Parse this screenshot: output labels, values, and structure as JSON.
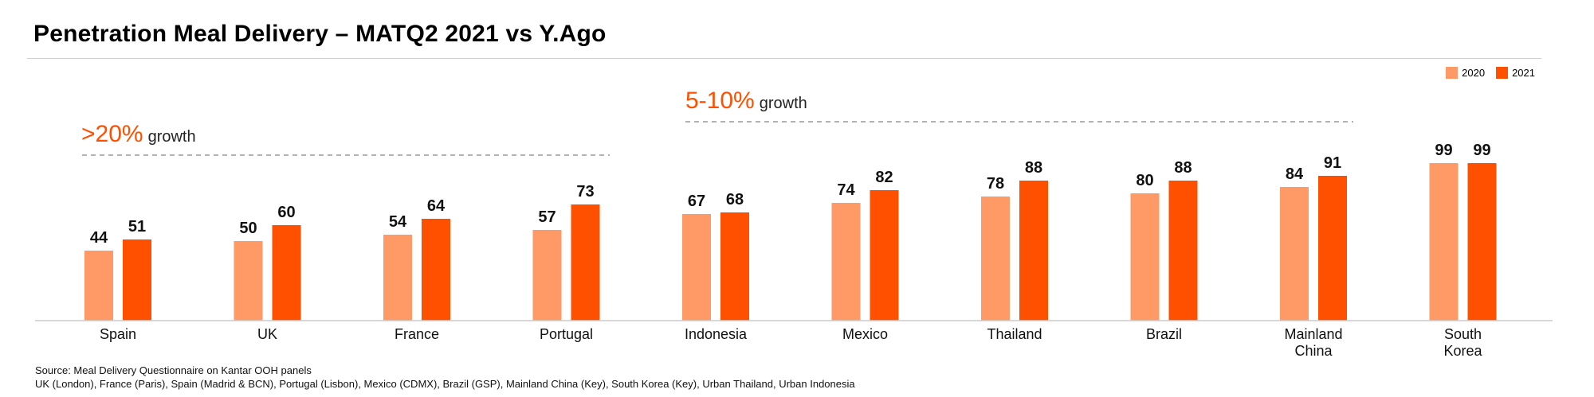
{
  "title": "Penetration Meal Delivery – MATQ2 2021 vs Y.Ago",
  "colors": {
    "series_2020": "#FF9966",
    "series_2021": "#FF5000",
    "accent": "#FF5000",
    "axis": "#cccccc"
  },
  "legend": [
    {
      "name": "2020"
    },
    {
      "name": "2021"
    }
  ],
  "callouts": [
    {
      "value": ">20%",
      "label": "growth"
    },
    {
      "value": "5-10%",
      "label": "growth"
    }
  ],
  "source": {
    "line1": "Source: Meal Delivery Questionnaire on Kantar OOH panels",
    "line2": "UK (London), France (Paris), Spain (Madrid & BCN), Portugal (Lisbon), Mexico (CDMX), Brazil (GSP), Mainland China (Key), South Korea (Key), Urban Thailand, Urban Indonesia"
  },
  "chart_data": {
    "type": "bar",
    "title": "Penetration Meal Delivery – MATQ2 2021 vs Y.Ago",
    "categories": [
      "Spain",
      "UK",
      "France",
      "Portugal",
      "Indonesia",
      "Mexico",
      "Thailand",
      "Brazil",
      "Mainland China",
      "South Korea"
    ],
    "category_lines": [
      [
        "Spain"
      ],
      [
        "UK"
      ],
      [
        "France"
      ],
      [
        "Portugal"
      ],
      [
        "Indonesia"
      ],
      [
        "Mexico"
      ],
      [
        "Thailand"
      ],
      [
        "Brazil"
      ],
      [
        "Mainland",
        "China"
      ],
      [
        "South",
        "Korea"
      ]
    ],
    "series": [
      {
        "name": "2020",
        "values": [
          44,
          50,
          54,
          57,
          67,
          74,
          78,
          80,
          84,
          99
        ]
      },
      {
        "name": "2021",
        "values": [
          51,
          60,
          64,
          73,
          68,
          82,
          88,
          88,
          91,
          99
        ]
      }
    ],
    "ylim": [
      0,
      100
    ],
    "xlabel": "",
    "ylabel": "",
    "legend_position": "top-right",
    "grid": false,
    "data_labels": true
  }
}
